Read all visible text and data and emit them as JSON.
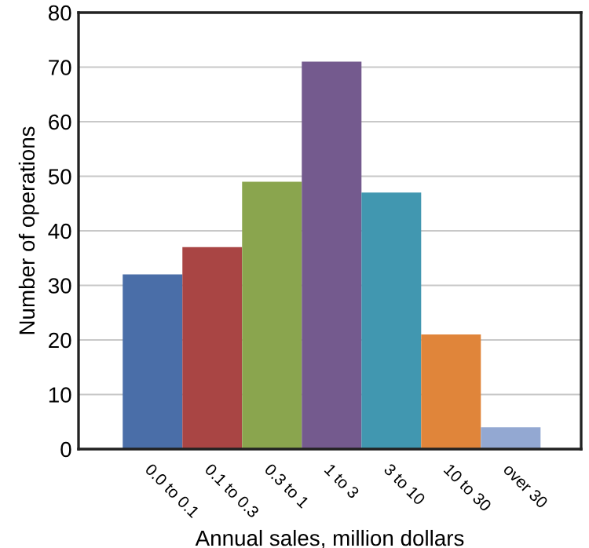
{
  "chart_data": {
    "type": "bar",
    "xlabel": "Annual sales, million dollars",
    "ylabel": "Number of operations",
    "categories": [
      "0.0 to 0.1",
      "0.1 to 0.3",
      "0.3 to 1",
      "1 to 3",
      "3 to 10",
      "10 to 30",
      "over 30"
    ],
    "values": [
      32,
      37,
      49,
      71,
      47,
      21,
      4
    ],
    "colors": [
      "#4a6ea8",
      "#a94544",
      "#8aa54e",
      "#745a8e",
      "#4197b0",
      "#e0853a",
      "#93a8d2"
    ],
    "ylim": [
      0,
      80
    ],
    "yticks": [
      0,
      10,
      20,
      30,
      40,
      50,
      60,
      70,
      80
    ],
    "grid": "y"
  }
}
